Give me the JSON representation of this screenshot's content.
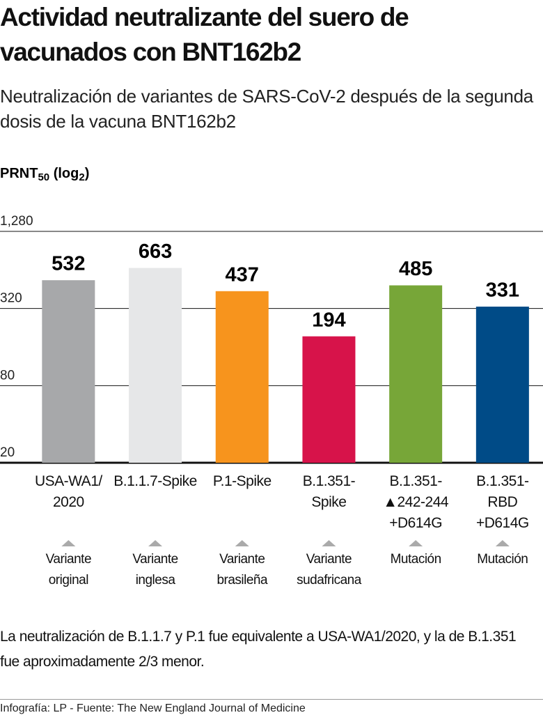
{
  "title": "Actividad neutralizante del suero de vacunados con BNT162b2",
  "subtitle": "Neutralización de variantes de SARS-CoV-2 después de la segunda dosis de la vacuna BNT162b2",
  "chart_data": {
    "type": "bar",
    "ylabel": [
      "PRNT",
      "50",
      " (log",
      "2",
      ")"
    ],
    "categories": [
      "USA-WA1/\n2020",
      "B.1.1.7-Spike",
      "P.1-Spike",
      "B.1.351-Spike",
      "B.1.351-\n▲242-244\n+D614G",
      "B.1.351-\nRBD\n+D614G"
    ],
    "category_notes": [
      "Variante\noriginal",
      "Variante\ninglesa",
      "Variante\nbrasileña",
      "Variante\nsudafricana",
      "Mutación",
      "Mutación"
    ],
    "values": [
      532,
      663,
      437,
      194,
      485,
      331
    ],
    "colors": [
      "#a7a8aa",
      "#e6e7e8",
      "#f7941d",
      "#d7134a",
      "#77a638",
      "#004b87"
    ],
    "log_scale": true,
    "log_base": 2,
    "ylim": [
      20,
      1280
    ],
    "yticks": [
      20,
      80,
      320,
      {
        "value": 1280,
        "label": "1,280"
      }
    ],
    "grid": true
  },
  "note": "La neutralización de B.1.1.7 y P.1 fue equivalente a USA-WA1/2020, y la de B.1.351 fue aproximadamente 2/3 menor.",
  "source": "Infografía: LP - Fuente: The New England Journal of Medicine"
}
